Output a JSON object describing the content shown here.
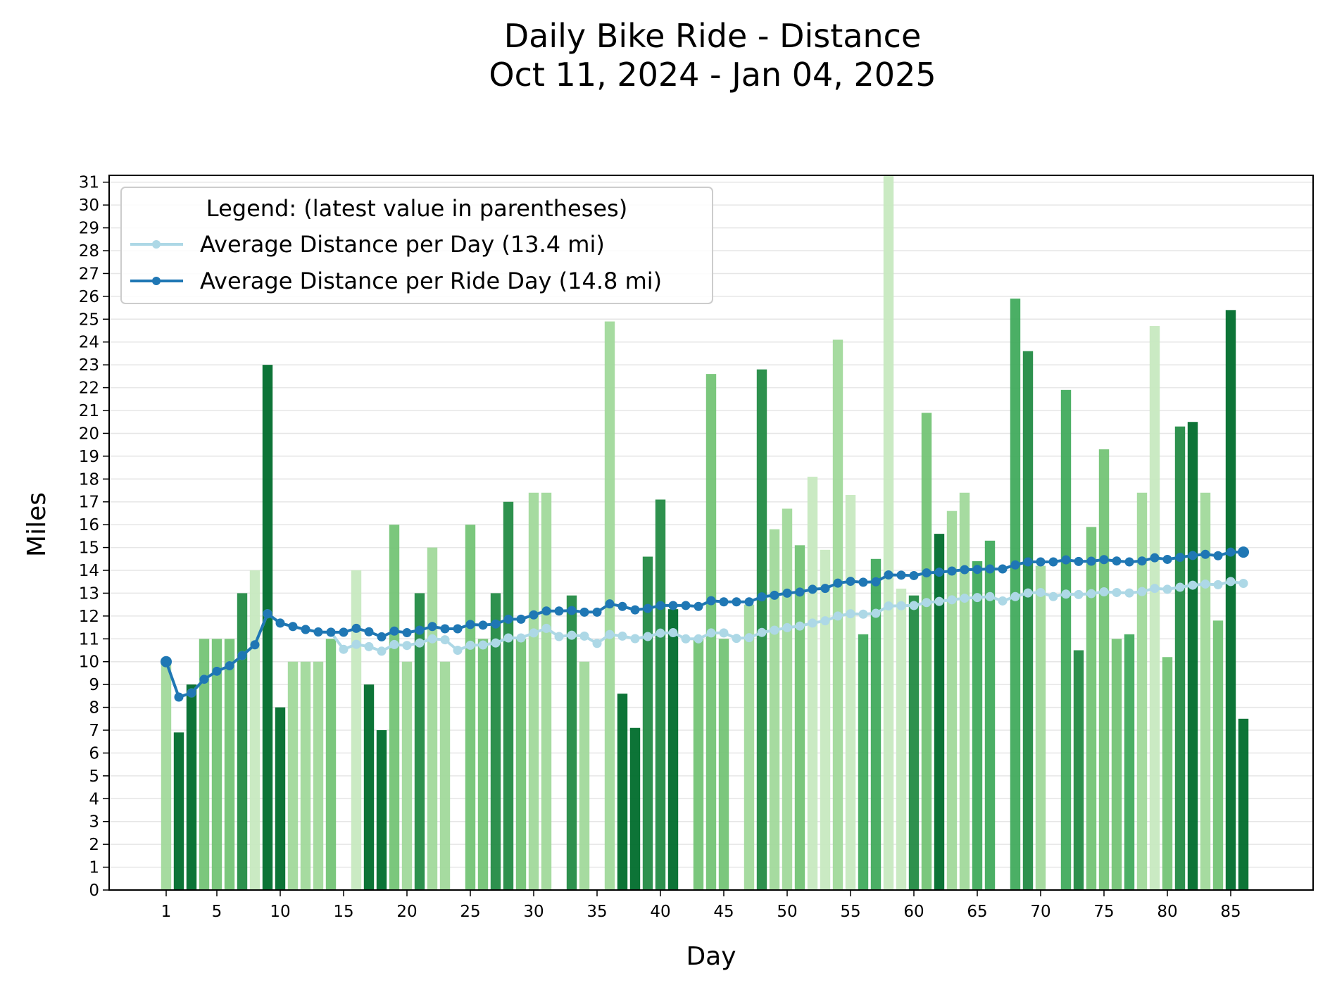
{
  "chart_data": {
    "type": "bar",
    "title": "Daily Bike Ride - Distance",
    "subtitle": "Oct 11, 2024 - Jan 04, 2025",
    "xlabel": "Day",
    "ylabel": "Miles",
    "xlim": [
      -3.5,
      91.5
    ],
    "ylim": [
      0,
      31.3
    ],
    "x_ticks": [
      "1",
      "5",
      "10",
      "15",
      "20",
      "25",
      "30",
      "35",
      "40",
      "45",
      "50",
      "55",
      "60",
      "65",
      "70",
      "75",
      "80",
      "85"
    ],
    "y_ticks": [
      "0",
      "1",
      "2",
      "3",
      "4",
      "5",
      "6",
      "7",
      "8",
      "9",
      "10",
      "11",
      "12",
      "13",
      "14",
      "15",
      "16",
      "17",
      "18",
      "19",
      "20",
      "21",
      "22",
      "23",
      "24",
      "25",
      "26",
      "27",
      "28",
      "29",
      "30",
      "31"
    ],
    "grid": "horizontal",
    "legend": {
      "title": "Legend: (latest value in parentheses)",
      "placement": "top-left",
      "entries": [
        "Average Distance per Day (13.4 mi)",
        "Average Distance per Ride Day (14.8 mi)"
      ]
    },
    "days": [
      1,
      2,
      3,
      4,
      5,
      6,
      7,
      8,
      9,
      10,
      11,
      12,
      13,
      14,
      15,
      16,
      17,
      18,
      19,
      20,
      21,
      22,
      23,
      24,
      25,
      26,
      27,
      28,
      29,
      30,
      31,
      32,
      33,
      34,
      35,
      36,
      37,
      38,
      39,
      40,
      41,
      42,
      43,
      44,
      45,
      46,
      47,
      48,
      49,
      50,
      51,
      52,
      53,
      54,
      55,
      56,
      57,
      58,
      59,
      60,
      61,
      62,
      63,
      64,
      65,
      66,
      67,
      68,
      69,
      70,
      71,
      72,
      73,
      74,
      75,
      76,
      77,
      78,
      79,
      80,
      81,
      82,
      83,
      84,
      85,
      86
    ],
    "bars": [
      10,
      6.9,
      9,
      11,
      11,
      11,
      13,
      14,
      23,
      8,
      10,
      10,
      10,
      11,
      0,
      14,
      9,
      7,
      16,
      10,
      13,
      15,
      10,
      0,
      16,
      11,
      13,
      17,
      11,
      17.4,
      17.4,
      0,
      12.9,
      10,
      0,
      24.9,
      8.6,
      7.1,
      14.6,
      17.1,
      12.3,
      0,
      11,
      22.6,
      11,
      0,
      12.5,
      22.8,
      15.8,
      16.7,
      15.1,
      18.1,
      14.9,
      24.1,
      17.3,
      11.2,
      14.5,
      31.3,
      13.2,
      12.9,
      20.9,
      15.6,
      16.6,
      17.4,
      14.4,
      15.3,
      0,
      25.9,
      23.6,
      14.2,
      0,
      21.9,
      10.5,
      15.9,
      19.3,
      11,
      11.2,
      17.4,
      24.7,
      10.2,
      20.3,
      20.5,
      17.4,
      11.8,
      25.4,
      7.5
    ],
    "series": [
      {
        "name": "Average Distance per Day (13.4 mi)",
        "color": "#add8e6",
        "values": [
          10,
          8.45,
          8.63,
          9.23,
          9.58,
          9.82,
          10.27,
          10.74,
          12.1,
          11.69,
          11.54,
          11.41,
          11.3,
          11.29,
          10.54,
          10.76,
          10.66,
          10.46,
          10.75,
          10.71,
          10.82,
          11.0,
          10.96,
          10.5,
          10.72,
          10.73,
          10.82,
          11.04,
          11.04,
          11.26,
          11.46,
          11.1,
          11.16,
          11.12,
          10.8,
          11.19,
          11.12,
          11.01,
          11.1,
          11.25,
          11.27,
          11.0,
          11.0,
          11.26,
          11.26,
          11.02,
          11.05,
          11.28,
          11.38,
          11.49,
          11.56,
          11.69,
          11.79,
          12.0,
          12.1,
          12.08,
          12.12,
          12.44,
          12.45,
          12.46,
          12.59,
          12.64,
          12.71,
          12.78,
          12.81,
          12.85,
          12.66,
          12.85,
          13.01,
          13.03,
          12.85,
          12.96,
          12.94,
          12.98,
          13.06,
          13.03,
          13.01,
          13.07,
          13.21,
          13.17,
          13.26,
          13.35,
          13.4,
          13.37,
          13.51,
          13.43
        ]
      },
      {
        "name": "Average Distance per Ride Day (14.8 mi)",
        "color": "#1f77b4",
        "values": [
          10,
          8.45,
          8.63,
          9.23,
          9.58,
          9.82,
          10.27,
          10.74,
          12.1,
          11.69,
          11.54,
          11.41,
          11.3,
          11.29,
          11.29,
          11.46,
          11.31,
          11.09,
          11.34,
          11.27,
          11.38,
          11.54,
          11.44,
          11.44,
          11.63,
          11.6,
          11.65,
          11.86,
          11.86,
          12.05,
          12.22,
          12.22,
          12.24,
          12.17,
          12.17,
          12.53,
          12.42,
          12.27,
          12.33,
          12.46,
          12.46,
          12.46,
          12.42,
          12.67,
          12.62,
          12.62,
          12.62,
          12.84,
          12.91,
          13.0,
          13.05,
          13.17,
          13.21,
          13.44,
          13.52,
          13.48,
          13.5,
          13.8,
          13.79,
          13.77,
          13.89,
          13.92,
          13.97,
          14.03,
          14.04,
          14.06,
          14.06,
          14.24,
          14.37,
          14.37,
          14.37,
          14.46,
          14.39,
          14.4,
          14.47,
          14.41,
          14.37,
          14.41,
          14.55,
          14.48,
          14.57,
          14.65,
          14.7,
          14.64,
          14.8,
          14.8
        ]
      }
    ]
  }
}
